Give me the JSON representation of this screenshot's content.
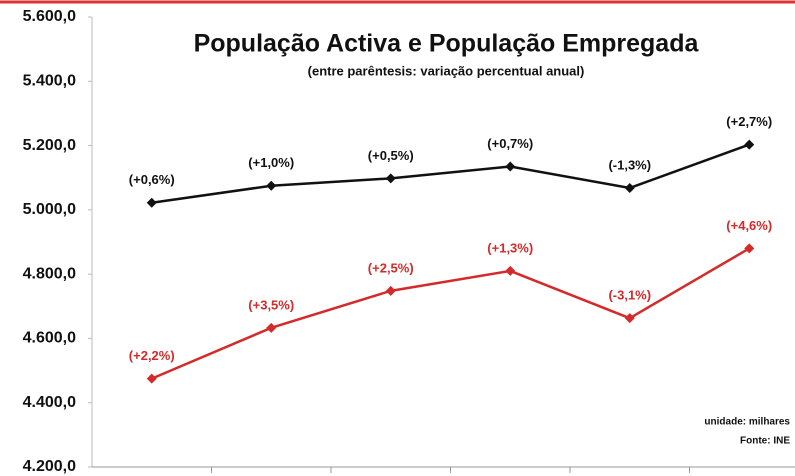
{
  "chart_data": {
    "type": "line",
    "title": "População Activa e População Empregada",
    "subtitle": "(entre parêntesis: variação percentual anual)",
    "categories": [
      null,
      null,
      null,
      null,
      null,
      null
    ],
    "series": [
      {
        "color": "#111111",
        "values": [
          5022,
          5075,
          5098,
          5135,
          5068,
          5203
        ],
        "point_labels": [
          "(+0,6%)",
          "(+1,0%)",
          "(+0,5%)",
          "(+0,7%)",
          "(-1,3%)",
          "(+2,7%)"
        ]
      },
      {
        "color": "#d42a2a",
        "values": [
          4475,
          4633,
          4748,
          4810,
          4663,
          4880
        ],
        "point_labels": [
          "(+2,2%)",
          "(+3,5%)",
          "(+2,5%)",
          "(+1,3%)",
          "(-3,1%)",
          "(+4,6%)"
        ]
      }
    ],
    "ylim": [
      4200,
      5600
    ],
    "yticks": [
      {
        "value": 4200,
        "label": "4.200,0"
      },
      {
        "value": 4400,
        "label": "4.400,0"
      },
      {
        "value": 4600,
        "label": "4.600,0"
      },
      {
        "value": 4800,
        "label": "4.800,0"
      },
      {
        "value": 5000,
        "label": "5.000,0"
      },
      {
        "value": 5200,
        "label": "5.200,0"
      },
      {
        "value": 5400,
        "label": "5.400,0"
      },
      {
        "value": 5600,
        "label": "5.600,0"
      }
    ],
    "grid": false,
    "annotations": [
      "unidade: milhares",
      "Fonte: INE"
    ]
  }
}
